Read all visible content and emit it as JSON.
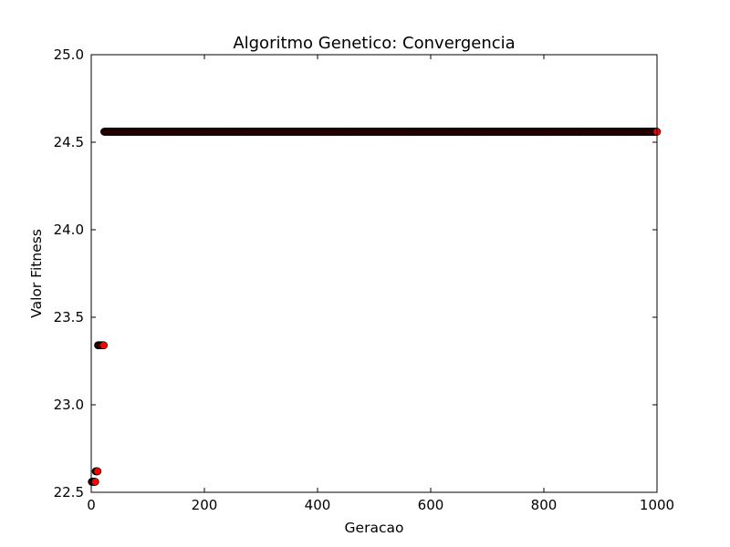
{
  "chart_data": {
    "type": "scatter",
    "title": "Algoritmo Genetico: Convergencia",
    "xlabel": "Geracao",
    "ylabel": "Valor Fitness",
    "xlim": [
      0,
      1000
    ],
    "ylim": [
      22.5,
      25.0
    ],
    "xticks": [
      0,
      200,
      400,
      600,
      800,
      1000
    ],
    "xtick_labels": [
      "0",
      "200",
      "400",
      "600",
      "800",
      "1000"
    ],
    "yticks": [
      22.5,
      23.0,
      23.5,
      24.0,
      24.5,
      25.0
    ],
    "ytick_labels": [
      "22.5",
      "23.0",
      "23.5",
      "24.0",
      "24.5",
      "25.0"
    ],
    "grid": false,
    "marker_color": "#ff0000",
    "marker_edge_color": "#000000",
    "segments": [
      {
        "x_start": 1,
        "x_end": 7,
        "y": 22.56
      },
      {
        "x_start": 8,
        "x_end": 11,
        "y": 22.62
      },
      {
        "x_start": 12,
        "x_end": 22,
        "y": 23.34
      },
      {
        "x_start": 23,
        "x_end": 1000,
        "y": 24.56
      }
    ]
  }
}
